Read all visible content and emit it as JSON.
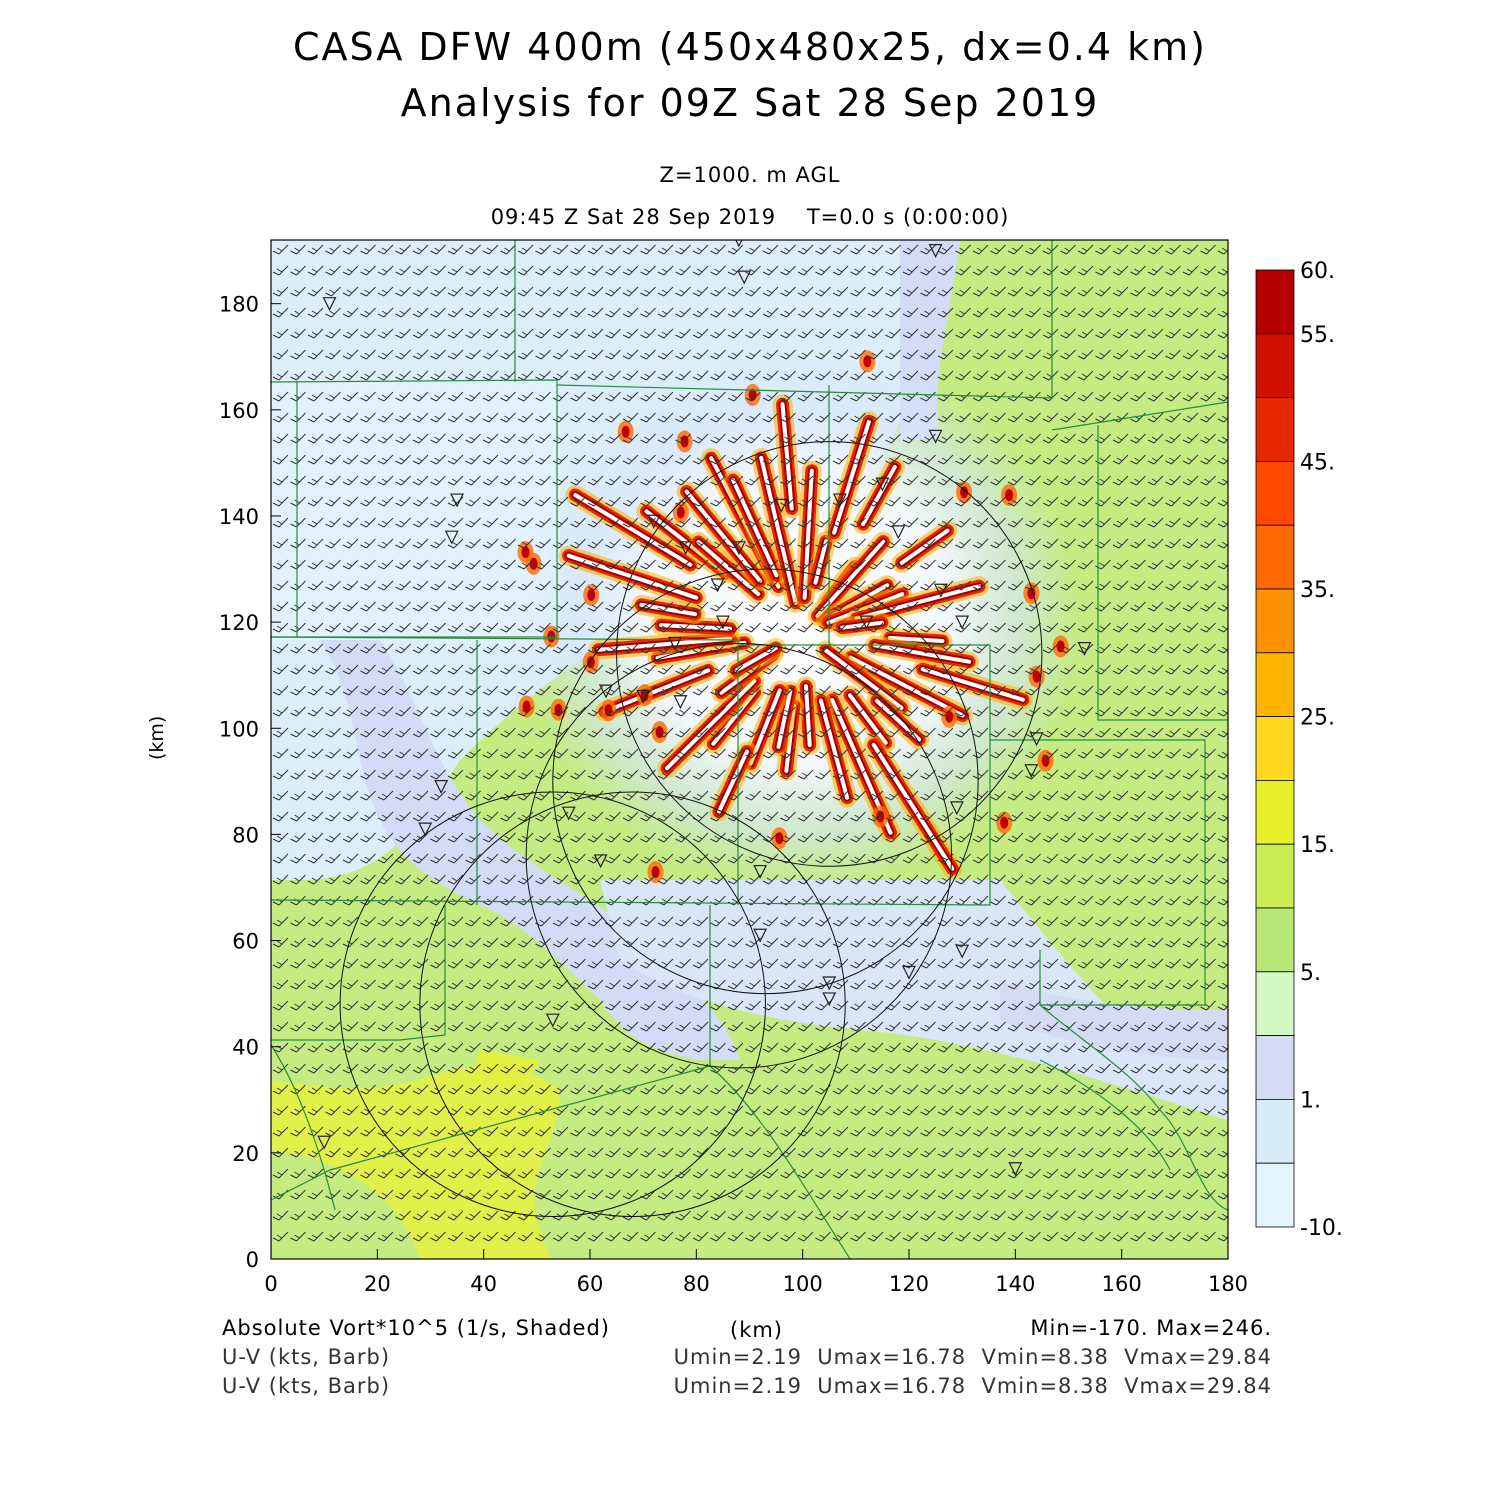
{
  "title": {
    "line1": "CASA DFW 400m (450x480x25, dx=0.4 km)",
    "line2": "Analysis for 09Z Sat 28 Sep 2019"
  },
  "subtitle": {
    "level": "Z=1000. m AGL",
    "time": "09:45 Z Sat 28 Sep 2019    T=0.0 s (0:00:00)"
  },
  "axes": {
    "x_label": "(km)",
    "y_label": "(km)",
    "x_range": [
      0,
      180
    ],
    "y_range": [
      0,
      192
    ],
    "x_ticks": [
      "0",
      "20",
      "40",
      "60",
      "80",
      "100",
      "120",
      "140",
      "160",
      "180"
    ],
    "y_ticks": [
      "0",
      "20",
      "40",
      "60",
      "80",
      "100",
      "120",
      "140",
      "160",
      "180"
    ]
  },
  "colorbar": {
    "labels": [
      "60.",
      "55.",
      "45.",
      "35.",
      "25.",
      "15.",
      "5.",
      "1.",
      "-10."
    ],
    "colors": [
      "#b40000",
      "#d01000",
      "#e82800",
      "#ff4800",
      "#ff6a00",
      "#ff9000",
      "#ffb400",
      "#ffd820",
      "#e6f02a",
      "#ccec55",
      "#b8e878",
      "#d4f8c4",
      "#d4dcf4",
      "#d8ecf8",
      "#e4f4fc"
    ]
  },
  "footer": {
    "field": "Absolute Vort*10^5 (1/s, Shaded)",
    "units": "(km)",
    "minmax": "Min=-170. Max=246.",
    "barb1": "U-V (kts, Barb)",
    "barb1_stats": "Umin=2.19  Umax=16.78  Vmin=8.38  Vmax=29.84",
    "barb2": "U-V (kts, Barb)",
    "barb2_stats": "Umin=2.19  Umax=16.78  Vmin=8.38  Vmax=29.84"
  },
  "map_data": {
    "radar_rings": [
      {
        "center": [
          93,
          90
        ],
        "radius": 40
      },
      {
        "center": [
          105,
          114
        ],
        "radius": 40
      },
      {
        "center": [
          68,
          48
        ],
        "radius": 40
      },
      {
        "center": [
          88,
          76
        ],
        "radius": 40
      },
      {
        "center": [
          53,
          48
        ],
        "radius": 40
      }
    ],
    "station_markers": [
      [
        11,
        180
      ],
      [
        88,
        192
      ],
      [
        89,
        185
      ],
      [
        125,
        190
      ],
      [
        35,
        143
      ],
      [
        34,
        136
      ],
      [
        32,
        89
      ],
      [
        29,
        81
      ],
      [
        56,
        84
      ],
      [
        62,
        75
      ],
      [
        53,
        45
      ],
      [
        10,
        22
      ],
      [
        92,
        61
      ],
      [
        105,
        52
      ],
      [
        120,
        54
      ],
      [
        130,
        58
      ],
      [
        140,
        17
      ],
      [
        143,
        92
      ],
      [
        129,
        85
      ],
      [
        92,
        73
      ],
      [
        125,
        155
      ],
      [
        107,
        143
      ],
      [
        115,
        146
      ],
      [
        96,
        142
      ],
      [
        78,
        134
      ],
      [
        88,
        134
      ],
      [
        72,
        139
      ],
      [
        84,
        127
      ],
      [
        76,
        116
      ],
      [
        85,
        120
      ],
      [
        112,
        120
      ],
      [
        130,
        120
      ],
      [
        63,
        107
      ],
      [
        70,
        106
      ],
      [
        77,
        105
      ],
      [
        118,
        137
      ],
      [
        126,
        126
      ],
      [
        144,
        98
      ],
      [
        153,
        115
      ],
      [
        105,
        49
      ]
    ],
    "vortex_center": [
      100,
      118
    ]
  }
}
